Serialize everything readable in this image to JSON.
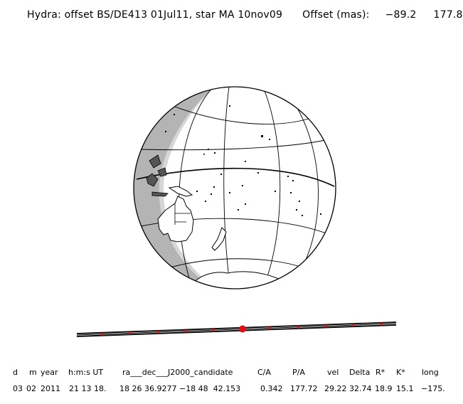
{
  "title": {
    "text": "Hydra: offset BS/DE413 01Jul11, star MA 10nov09",
    "offset_label": "Offset (mas):",
    "offset_x": "−89.2",
    "offset_y": "177.8"
  },
  "table": {
    "headers": [
      "d",
      "m",
      "year",
      "h:m:s UT",
      "ra___dec___J2000_candidate",
      "C/A",
      "P/A",
      "vel",
      "Delta",
      "R*",
      "K*",
      "long"
    ],
    "values": [
      "03",
      "02",
      "2011",
      "21 13 18.",
      "18 26 36.9277 −18 48  42.153",
      "0.342",
      "177.72",
      "29.22",
      "32.74",
      "18.9",
      "15.1",
      "−175."
    ]
  },
  "colors": {
    "ink": "#000000",
    "night_shade": "#b4b4b4",
    "shadow_center": "#e01010",
    "track_dots": "#cc2020"
  }
}
